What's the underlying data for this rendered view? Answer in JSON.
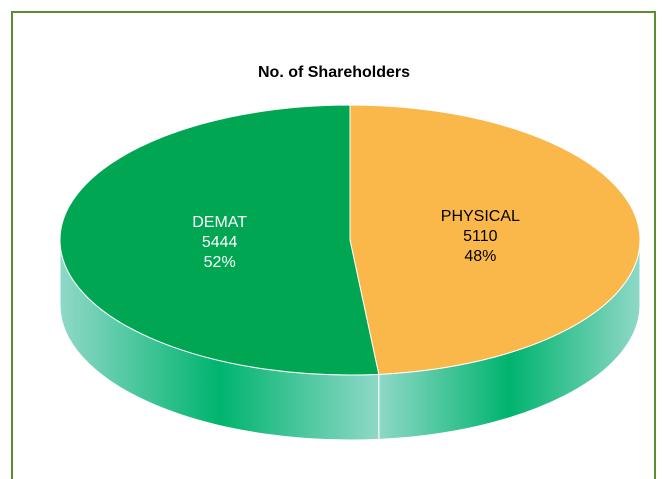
{
  "chart_data": {
    "type": "pie",
    "title": "No. of Shareholders",
    "categories": [
      "PHYSICAL",
      "DEMAT"
    ],
    "values": [
      5110,
      5444
    ],
    "percent_labels": [
      "48%",
      "52%"
    ],
    "colors": [
      "#fbb84a",
      "#00a651"
    ],
    "label_colors": [
      "#000000",
      "#ffffff"
    ]
  }
}
